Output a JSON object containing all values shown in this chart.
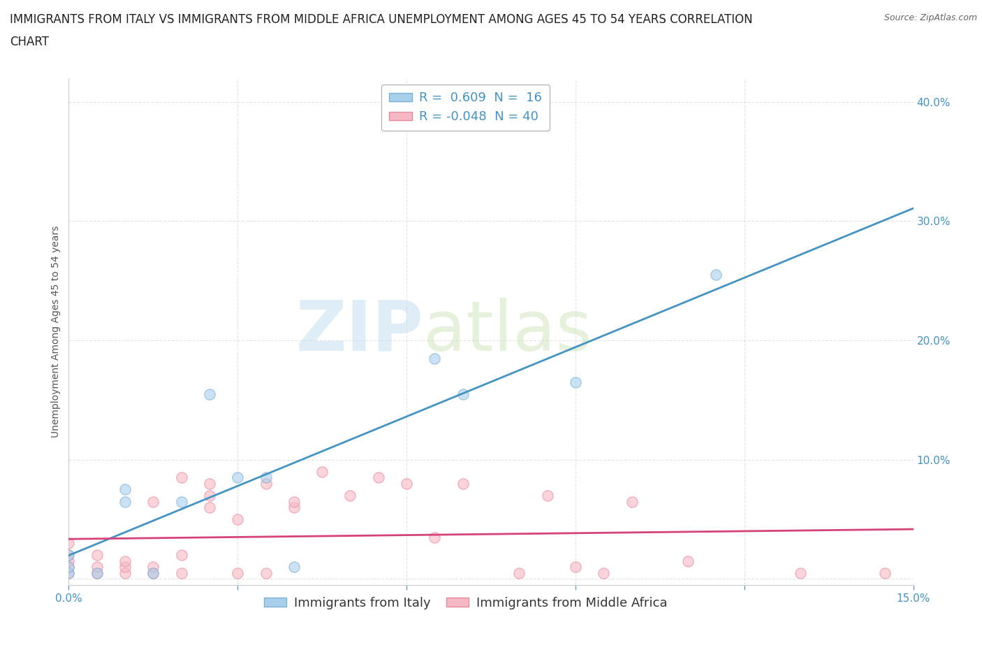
{
  "title_line1": "IMMIGRANTS FROM ITALY VS IMMIGRANTS FROM MIDDLE AFRICA UNEMPLOYMENT AMONG AGES 45 TO 54 YEARS CORRELATION",
  "title_line2": "CHART",
  "source": "Source: ZipAtlas.com",
  "ylabel_label": "Unemployment Among Ages 45 to 54 years",
  "xlim": [
    0.0,
    0.15
  ],
  "ylim": [
    -0.005,
    0.42
  ],
  "x_ticks": [
    0.0,
    0.03,
    0.06,
    0.09,
    0.12,
    0.15
  ],
  "x_tick_labels": [
    "0.0%",
    "",
    "",
    "",
    "",
    "15.0%"
  ],
  "y_ticks": [
    0.0,
    0.1,
    0.2,
    0.3,
    0.4
  ],
  "y_tick_labels": [
    "",
    "10.0%",
    "20.0%",
    "30.0%",
    "40.0%"
  ],
  "italy_color": "#a8d0eb",
  "italy_edge_color": "#7bafd4",
  "middle_africa_color": "#f5b8c4",
  "middle_africa_edge_color": "#e88a9e",
  "line_italy_color": "#4393c3",
  "line_africa_color": "#d6427a",
  "italy_R": 0.609,
  "italy_N": 16,
  "africa_R": -0.048,
  "africa_N": 40,
  "watermark_zip": "ZIP",
  "watermark_atlas": "atlas",
  "italy_scatter_x": [
    0.0,
    0.0,
    0.0,
    0.005,
    0.01,
    0.01,
    0.015,
    0.02,
    0.025,
    0.03,
    0.035,
    0.04,
    0.065,
    0.07,
    0.09,
    0.115
  ],
  "italy_scatter_y": [
    0.005,
    0.01,
    0.02,
    0.005,
    0.065,
    0.075,
    0.005,
    0.065,
    0.155,
    0.085,
    0.085,
    0.01,
    0.185,
    0.155,
    0.165,
    0.255
  ],
  "africa_scatter_x": [
    0.0,
    0.0,
    0.0,
    0.0,
    0.0,
    0.005,
    0.005,
    0.005,
    0.01,
    0.01,
    0.01,
    0.015,
    0.015,
    0.015,
    0.02,
    0.02,
    0.02,
    0.025,
    0.025,
    0.025,
    0.03,
    0.03,
    0.035,
    0.035,
    0.04,
    0.04,
    0.045,
    0.05,
    0.055,
    0.06,
    0.065,
    0.07,
    0.08,
    0.085,
    0.09,
    0.095,
    0.1,
    0.11,
    0.13,
    0.145
  ],
  "africa_scatter_y": [
    0.005,
    0.01,
    0.015,
    0.02,
    0.03,
    0.005,
    0.01,
    0.02,
    0.005,
    0.01,
    0.015,
    0.005,
    0.01,
    0.065,
    0.005,
    0.02,
    0.085,
    0.06,
    0.07,
    0.08,
    0.005,
    0.05,
    0.005,
    0.08,
    0.06,
    0.065,
    0.09,
    0.07,
    0.085,
    0.08,
    0.035,
    0.08,
    0.005,
    0.07,
    0.01,
    0.005,
    0.065,
    0.015,
    0.005,
    0.005
  ],
  "grid_color": "#dddddd",
  "bg_color": "#ffffff",
  "title_fontsize": 12,
  "axis_label_fontsize": 10,
  "tick_fontsize": 11,
  "legend_fontsize": 13,
  "marker_size": 120,
  "marker_alpha": 0.6
}
